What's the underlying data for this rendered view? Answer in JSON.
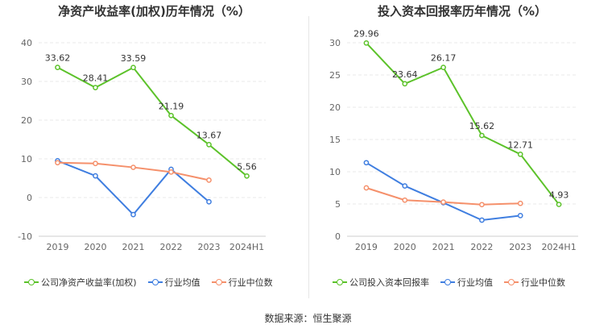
{
  "chart_data": [
    {
      "type": "line",
      "title": "净资产收益率(加权)历年情况（%）",
      "categories": [
        "2019",
        "2020",
        "2021",
        "2022",
        "2023",
        "2024H1"
      ],
      "ylim": [
        -10,
        40
      ],
      "yticks": [
        -10,
        0,
        10,
        20,
        30,
        40
      ],
      "grid": true,
      "legend_position": "bottom",
      "series": [
        {
          "name": "公司净资产收益率(加权)",
          "color": "#5cc22a",
          "values": [
            33.62,
            28.41,
            33.59,
            21.19,
            13.67,
            5.56
          ],
          "labels": [
            "33.62",
            "28.41",
            "33.59",
            "21.19",
            "13.67",
            "5.56"
          ]
        },
        {
          "name": "行业均值",
          "color": "#3f7ee0",
          "values": [
            9.5,
            5.6,
            -4.4,
            7.3,
            -1.1,
            null
          ]
        },
        {
          "name": "行业中位数",
          "color": "#f5906b",
          "values": [
            9.0,
            8.8,
            7.8,
            6.6,
            4.5,
            null
          ]
        }
      ]
    },
    {
      "type": "line",
      "title": "投入资本回报率历年情况（%）",
      "categories": [
        "2019",
        "2020",
        "2021",
        "2022",
        "2023",
        "2024H1"
      ],
      "ylim": [
        0,
        30
      ],
      "yticks": [
        0,
        5,
        10,
        15,
        20,
        25,
        30
      ],
      "grid": true,
      "legend_position": "bottom",
      "series": [
        {
          "name": "公司投入资本回报率",
          "color": "#5cc22a",
          "values": [
            29.96,
            23.64,
            26.17,
            15.62,
            12.71,
            4.93
          ],
          "labels": [
            "29.96",
            "23.64",
            "26.17",
            "15.62",
            "12.71",
            "4.93"
          ]
        },
        {
          "name": "行业均值",
          "color": "#3f7ee0",
          "values": [
            11.4,
            7.8,
            5.2,
            2.5,
            3.2,
            null
          ]
        },
        {
          "name": "行业中位数",
          "color": "#f5906b",
          "values": [
            7.5,
            5.6,
            5.3,
            4.9,
            5.1,
            null
          ]
        }
      ]
    }
  ],
  "footer": {
    "source": "数据来源：恒生聚源"
  }
}
